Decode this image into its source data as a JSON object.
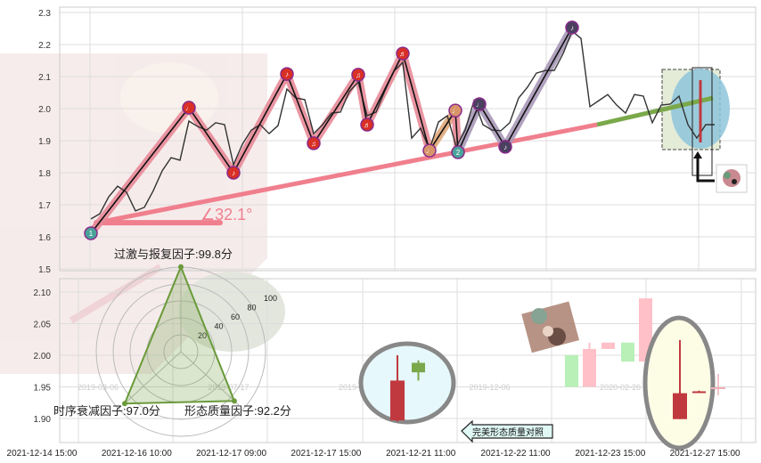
{
  "chart_data": [
    {
      "type": "line",
      "panel": "top",
      "ylim": [
        1.5,
        2.3
      ],
      "yticks": [
        "1.5",
        "1.6",
        "1.7",
        "1.8",
        "1.9",
        "2.0",
        "2.1",
        "2.2",
        "2.3"
      ],
      "grid": true,
      "price": [
        1.656,
        1.672,
        1.725,
        1.758,
        1.739,
        1.681,
        1.692,
        1.744,
        1.806,
        1.847,
        1.839,
        1.961,
        1.944,
        1.933,
        1.956,
        1.95,
        1.825,
        1.889,
        1.933,
        1.95,
        1.922,
        1.947,
        2.061,
        2.033,
        2.028,
        1.922,
        1.95,
        1.986,
        1.989,
        2.053,
        2.083,
        1.978,
        1.989,
        2.056,
        2.117,
        2.144,
        1.908,
        1.939,
        1.872,
        1.958,
        1.978,
        1.881,
        1.933,
        2.025,
        1.95,
        1.933,
        1.931,
        1.956,
        2.033,
        2.067,
        2.111,
        2.119,
        2.119,
        2.172,
        2.242,
        2.219,
        2.006,
        2.025,
        2.044,
        2.011,
        1.986,
        2.044,
        2.039,
        1.956,
        2.011,
        2.014,
        2.039,
        1.95,
        1.908,
        1.95,
        1.95
      ],
      "pivots": [
        {
          "i": 0,
          "v": 1.611,
          "label": "1",
          "color": "#4aa39a"
        },
        {
          "i": 11,
          "v": 2.003,
          "label": "♩",
          "color": "#d93025"
        },
        {
          "i": 16,
          "v": 1.8,
          "label": "♪",
          "color": "#d93025"
        },
        {
          "i": 22,
          "v": 2.108,
          "label": "♪",
          "color": "#d93025"
        },
        {
          "i": 25,
          "v": 1.892,
          "label": "♫",
          "color": "#d93025"
        },
        {
          "i": 30,
          "v": 2.106,
          "label": "♫",
          "color": "#d93025"
        },
        {
          "i": 31,
          "v": 1.95,
          "label": "♬",
          "color": "#d93025"
        },
        {
          "i": 35,
          "v": 2.172,
          "label": "♬",
          "color": "#d93025"
        },
        {
          "i": 38,
          "v": 1.869,
          "label": "♩",
          "color": "#d9956a"
        },
        {
          "i": 40.9,
          "v": 1.994,
          "label": "♩",
          "color": "#d9956a"
        },
        {
          "i": 41.2,
          "v": 1.864,
          "label": "2",
          "color": "#4aa39a"
        },
        {
          "i": 43.6,
          "v": 2.014,
          "label": "♩",
          "color": "#4a4060"
        },
        {
          "i": 46.5,
          "v": 1.881,
          "label": "♪",
          "color": "#4a4060"
        },
        {
          "i": 54,
          "v": 2.253,
          "label": "♪",
          "color": "#4a4060"
        }
      ],
      "segment_colors": [
        "#e88a98",
        "#e88a98",
        "#e88a98",
        "#e88a98",
        "#e88a98",
        "#e88a98",
        "#e88a98",
        "#e88a98",
        "#e0a878",
        "#e88a98",
        "#a898b8",
        "#a898b8",
        "#a898b8"
      ],
      "trend": {
        "start": {
          "i": 0.6,
          "v": 1.644
        },
        "mid": {
          "i": 56.8,
          "v": 1.95
        },
        "end": {
          "i": 69.8,
          "v": 2.033
        },
        "color_up": "#f07f8e",
        "color_ext": "#7aa84a"
      },
      "angle_label": "∠32.1°"
    },
    {
      "type": "candlestick",
      "panel": "bottom",
      "ylim": [
        1.87,
        2.12
      ],
      "yticks": [
        "1.90",
        "1.95",
        "2.00",
        "2.05",
        "2.10"
      ],
      "xticks": [
        "2021-12-14 15:00",
        "2021-12-16 10:00",
        "2021-12-17 09:00",
        "2021-12-17 15:00",
        "2021-12-21 11:00",
        "2021-12-22 11:00",
        "2021-12-23 15:00",
        "2021-12-27 15:00"
      ],
      "watermark_dates": [
        "2019-03-06",
        "2019-07-17",
        "2019-09-26",
        "2019-12-06",
        "2020-02-26"
      ],
      "reference_candles": [
        {
          "open": 1.96,
          "close": 1.897,
          "high": 2.0,
          "low": 1.895,
          "color": "#c0393f"
        },
        {
          "open": 1.973,
          "close": 1.988,
          "high": 1.992,
          "low": 1.96,
          "color": "#7aa84a"
        }
      ],
      "current_candles": [
        {
          "open": 1.94,
          "close": 1.899,
          "high": 2.024,
          "low": 1.899,
          "color": "#c0393f"
        },
        {
          "open": 1.943,
          "close": 1.941,
          "high": 1.944,
          "low": 1.941,
          "color": "#c0393f"
        }
      ],
      "faded_candles": [
        {
          "open": 1.95,
          "close": 2.0,
          "high": 2.0,
          "low": 1.95,
          "color": "#b8f0b8"
        },
        {
          "open": 1.95,
          "close": 2.01,
          "high": 2.02,
          "low": 1.95,
          "color": "#ffc0c8"
        },
        {
          "open": 2.01,
          "close": 2.02,
          "high": 2.02,
          "low": 2.01,
          "color": "#ffc0c8"
        },
        {
          "open": 2.02,
          "close": 1.99,
          "high": 2.02,
          "low": 1.99,
          "color": "#b8f0b8"
        },
        {
          "open": 1.99,
          "close": 2.09,
          "high": 2.09,
          "low": 1.94,
          "color": "#ffc0c8"
        },
        {
          "open": 2.04,
          "close": 1.9,
          "high": 2.04,
          "low": 1.9,
          "color": "#b8f0b8"
        }
      ],
      "callout": "完美形态质量对照"
    }
  ],
  "radar": {
    "ring_labels": [
      "20",
      "40",
      "60",
      "80",
      "100"
    ],
    "factors": [
      {
        "label": "过激与报复因子:99.8分",
        "value": 99.8
      },
      {
        "label": "时序衰减因子:97.0分",
        "value": 97.0
      },
      {
        "label": "形态质量因子:92.2分",
        "value": 92.2
      }
    ],
    "color": "#6a9a3a"
  }
}
